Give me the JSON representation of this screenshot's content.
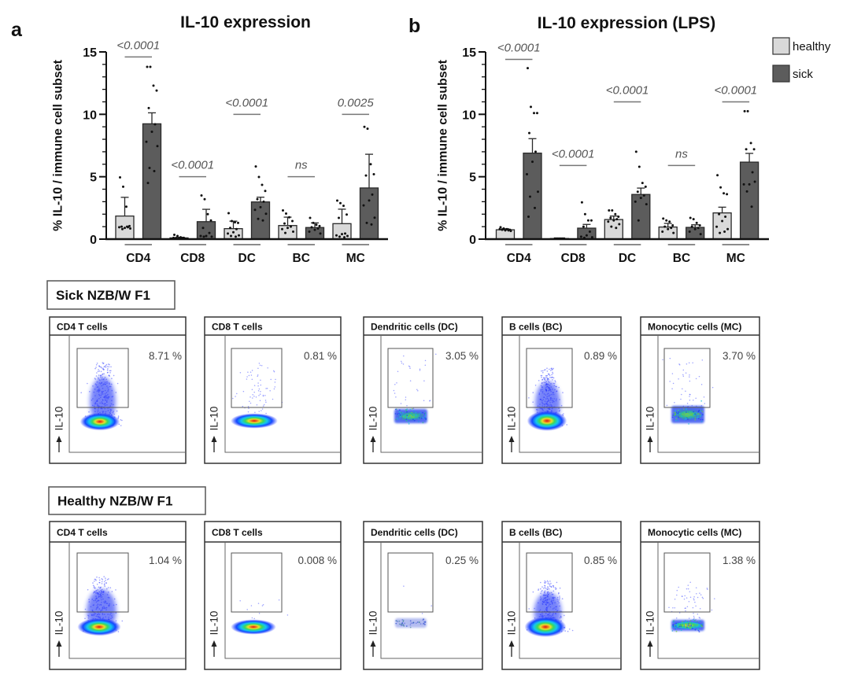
{
  "chart_data": [
    {
      "type": "bar",
      "panel_letter": "a",
      "title": "IL-10 expression",
      "xlabel": "",
      "ylabel": "% IL-10 / immune cell subset",
      "ylim": [
        0,
        15
      ],
      "yticks": [
        0,
        5,
        10,
        15
      ],
      "grid": false,
      "categories": [
        "CD4",
        "CD8",
        "DC",
        "BC",
        "MC"
      ],
      "series": [
        {
          "name": "healthy",
          "color": "#d9d9d9",
          "values": [
            1.85,
            0.1,
            0.84,
            1.09,
            1.24
          ],
          "error": [
            1.5,
            0.05,
            0.6,
            0.67,
            1.16
          ],
          "points": [
            [
              4.95,
              4.2,
              2.6,
              1.05,
              1.0,
              0.95,
              0.9,
              0.95,
              0.85,
              0.8,
              1.0
            ],
            [
              0.35,
              0.25,
              0.15,
              0.1,
              0.05,
              0.05,
              0.05,
              0.1,
              0.05
            ],
            [
              2.08,
              1.45,
              1.35,
              1.3,
              0.9,
              0.8,
              0.55,
              0.45,
              0.3,
              0.25,
              0.2
            ],
            [
              2.3,
              2.05,
              1.75,
              1.45,
              1.25,
              1.0,
              0.9,
              0.8,
              0.6,
              0.5
            ],
            [
              3.09,
              2.88,
              2.67,
              1.97,
              1.7,
              0.45,
              0.4,
              0.3,
              0.25,
              0.2,
              0.15
            ]
          ]
        },
        {
          "name": "sick",
          "color": "#5c5c5c",
          "values": [
            9.24,
            1.4,
            2.98,
            0.93,
            4.1
          ],
          "error": [
            0.88,
            0.99,
            0.38,
            0.37,
            2.7
          ],
          "points": [
            [
              13.8,
              13.8,
              12.3,
              11.9,
              10.5,
              9.2,
              8.6,
              7.8,
              7.45,
              5.7,
              5.45,
              4.5
            ],
            [
              3.5,
              3.2,
              2.0,
              1.5,
              0.9,
              0.5,
              0.25,
              0.25,
              0.2,
              0.2
            ],
            [
              5.82,
              4.98,
              4.35,
              3.86,
              3.2,
              3.0,
              2.56,
              2.35,
              2.03,
              1.62,
              1.5
            ],
            [
              1.7,
              1.3,
              1.15,
              1.05,
              0.95,
              0.85,
              0.75,
              0.6,
              0.45
            ],
            [
              9.0,
              8.85,
              6.0,
              5.2,
              5.1,
              3.57,
              3.1,
              2.7,
              1.72,
              1.3,
              1.17
            ]
          ]
        }
      ],
      "significance": [
        {
          "category": "CD4",
          "label": "<0.0001",
          "bracket_y": 14.6
        },
        {
          "category": "CD8",
          "label": "<0.0001",
          "bracket_y": 5.0
        },
        {
          "category": "DC",
          "label": "<0.0001",
          "bracket_y": 10.0
        },
        {
          "category": "BC",
          "label": "ns",
          "bracket_y": 5.0
        },
        {
          "category": "MC",
          "label": "0.0025",
          "bracket_y": 10.0
        }
      ],
      "legend": null
    },
    {
      "type": "bar",
      "panel_letter": "b",
      "title": "IL-10 expression (LPS)",
      "xlabel": "",
      "ylabel": "% IL-10 / immune cell subset",
      "ylim": [
        0,
        15
      ],
      "yticks": [
        0,
        5,
        10,
        15
      ],
      "grid": false,
      "categories": [
        "CD4",
        "CD8",
        "DC",
        "BC",
        "MC"
      ],
      "series": [
        {
          "name": "healthy",
          "color": "#d9d9d9",
          "values": [
            0.75,
            0.05,
            1.57,
            0.97,
            2.1
          ],
          "error": [
            0.08,
            0.01,
            0.28,
            0.29,
            0.46
          ],
          "points": [
            [
              0.95,
              0.85,
              0.8,
              0.75,
              0.75,
              0.7,
              0.7,
              0.8,
              0.65
            ],
            [
              0.05,
              0.05,
              0.05,
              0.05,
              0.05,
              0.05,
              0.05
            ],
            [
              2.3,
              2.3,
              2.0,
              1.8,
              1.7,
              1.6,
              1.5,
              1.4,
              1.2,
              1.0,
              0.9
            ],
            [
              1.65,
              1.5,
              1.4,
              1.1,
              1.0,
              0.9,
              0.8,
              0.6,
              0.5
            ],
            [
              5.12,
              4.14,
              3.67,
              3.6,
              2.0,
              1.8,
              1.45,
              0.99,
              0.8,
              0.5,
              0.6
            ]
          ]
        },
        {
          "name": "sick",
          "color": "#5c5c5c",
          "values": [
            6.89,
            0.88,
            3.58,
            0.94,
            6.17
          ],
          "error": [
            1.16,
            0.3,
            0.51,
            0.21,
            0.7
          ],
          "points": [
            [
              13.7,
              10.6,
              10.1,
              10.1,
              8.5,
              7.0,
              6.2,
              5.2,
              3.8,
              3.4,
              2.5,
              1.8
            ],
            [
              2.95,
              2.0,
              1.5,
              1.5,
              1.0,
              0.6,
              0.3,
              0.2,
              0.15,
              0.1
            ],
            [
              7.0,
              5.8,
              4.5,
              4.2,
              3.8,
              3.5,
              3.3,
              3.0,
              2.8,
              1.5
            ],
            [
              1.7,
              1.6,
              1.3,
              1.1,
              1.0,
              0.9,
              0.8,
              0.6,
              0.4
            ],
            [
              10.25,
              10.25,
              7.7,
              7.2,
              7.2,
              5.36,
              4.39,
              4.39,
              4.6,
              3.82,
              2.6
            ]
          ]
        }
      ],
      "significance": [
        {
          "category": "CD4",
          "label": "<0.0001",
          "bracket_y": 14.4
        },
        {
          "category": "CD8",
          "label": "<0.0001",
          "bracket_y": 5.9
        },
        {
          "category": "DC",
          "label": "<0.0001",
          "bracket_y": 11.0
        },
        {
          "category": "BC",
          "label": "ns",
          "bracket_y": 5.9
        },
        {
          "category": "MC",
          "label": "<0.0001",
          "bracket_y": 11.0
        }
      ],
      "legend": {
        "position": "top-right",
        "items": [
          {
            "label": "healthy",
            "color": "#d9d9d9"
          },
          {
            "label": "sick",
            "color": "#5c5c5c"
          }
        ]
      }
    }
  ],
  "flow": {
    "axis_label": "IL-10",
    "rows": [
      {
        "title": "Sick NZB/W F1",
        "panels": [
          {
            "label": "CD4 T cells",
            "percent": "8.71 %"
          },
          {
            "label": "CD8 T cells",
            "percent": "0.81 %"
          },
          {
            "label": "Dendritic cells (DC)",
            "percent": "3.05 %"
          },
          {
            "label": "B cells (BC)",
            "percent": "0.89 %"
          },
          {
            "label": "Monocytic cells (MC)",
            "percent": "3.70 %"
          }
        ]
      },
      {
        "title": "Healthy NZB/W F1",
        "panels": [
          {
            "label": "CD4 T cells",
            "percent": "1.04 %"
          },
          {
            "label": "CD8 T cells",
            "percent": "0.008 %"
          },
          {
            "label": "Dendritic cells (DC)",
            "percent": "0.25 %"
          },
          {
            "label": "B cells (BC)",
            "percent": "0.85 %"
          },
          {
            "label": "Monocytic cells (MC)",
            "percent": "1.38 %"
          }
        ]
      }
    ]
  }
}
